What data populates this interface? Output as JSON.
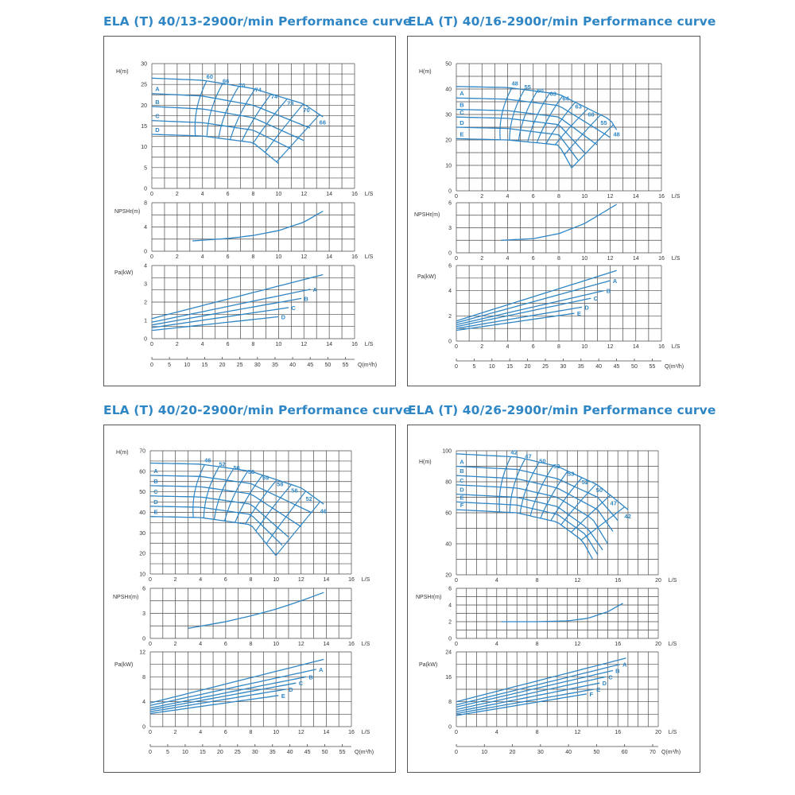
{
  "colors": {
    "curve": "#2f86c5",
    "grid": "#4a4a4a",
    "title": "#2f86c5",
    "text": "#333333"
  },
  "labels": {
    "h": "H(m)",
    "npsh": "NPSHr(m)",
    "pa": "Pa(kW)",
    "ls": "L/S",
    "q": "Q(m³/h)"
  },
  "chart_data": [
    {
      "type": "line",
      "title": "ELA (T) 40/13-2900r/min Performance curve",
      "head": {
        "xlim": [
          0,
          16
        ],
        "ylim": [
          0,
          30
        ],
        "xticks": [
          0,
          2,
          4,
          6,
          8,
          10,
          12,
          14,
          16
        ],
        "yticks": [
          0,
          5,
          10,
          15,
          20,
          25,
          30
        ],
        "series": [
          {
            "x": [
              0,
              4,
              8,
              12,
              13.5
            ],
            "y": [
              26.5,
              26,
              24,
              20.3,
              17.2
            ]
          },
          {
            "name": "A",
            "x": [
              0,
              4,
              8,
              12.5
            ],
            "y": [
              22.8,
              22.2,
              20,
              14.5
            ]
          },
          {
            "name": "B",
            "x": [
              0,
              4,
              8,
              12
            ],
            "y": [
              19.7,
              19.1,
              17,
              11.5
            ]
          },
          {
            "name": "C",
            "x": [
              0,
              4,
              8,
              11
            ],
            "y": [
              16.3,
              15.8,
              14,
              9.5
            ]
          },
          {
            "name": "D",
            "x": [
              0,
              4,
              8,
              10
            ],
            "y": [
              13,
              12.6,
              11,
              6
            ]
          }
        ],
        "efficiency_labels": [
          "60",
          "66",
          "70",
          "74",
          "74",
          "73",
          "70",
          "66"
        ]
      },
      "npsh": {
        "xlim": [
          0,
          16
        ],
        "ylim": [
          0,
          8
        ],
        "yticks": [
          0,
          4,
          8
        ],
        "xticks": [
          0,
          2,
          4,
          6,
          8,
          10,
          12,
          14,
          16
        ],
        "series": [
          {
            "x": [
              3.2,
              6,
              8,
              10,
              12,
              13.5
            ],
            "y": [
              1.7,
              2.1,
              2.6,
              3.4,
              4.8,
              6.6
            ]
          }
        ]
      },
      "power": {
        "xlim": [
          0,
          16
        ],
        "ylim": [
          0,
          4
        ],
        "yticks": [
          0,
          1,
          2,
          3,
          4
        ],
        "xticks": [
          0,
          2,
          4,
          6,
          8,
          10,
          12,
          14,
          16
        ],
        "series": [
          {
            "x": [
              0,
              13.5
            ],
            "y": [
              1.1,
              3.5
            ]
          },
          {
            "name": "A",
            "x": [
              0,
              12.5
            ],
            "y": [
              0.9,
              2.7
            ]
          },
          {
            "name": "B",
            "x": [
              0,
              11.8
            ],
            "y": [
              0.75,
              2.2
            ]
          },
          {
            "name": "C",
            "x": [
              0,
              10.8
            ],
            "y": [
              0.6,
              1.7
            ]
          },
          {
            "name": "D",
            "x": [
              0,
              10
            ],
            "y": [
              0.45,
              1.2
            ]
          }
        ]
      },
      "q_axis": {
        "ticks": [
          0,
          5,
          10,
          15,
          20,
          25,
          30,
          35,
          40,
          45,
          50,
          55
        ],
        "max": 57.6
      }
    },
    {
      "type": "line",
      "title": "ELA (T) 40/16-2900r/min Performance curve",
      "head": {
        "xlim": [
          0,
          16
        ],
        "ylim": [
          0,
          50
        ],
        "xticks": [
          0,
          2,
          4,
          6,
          8,
          10,
          12,
          14,
          16
        ],
        "yticks": [
          0,
          10,
          20,
          30,
          40,
          50
        ],
        "series": [
          {
            "x": [
              0,
              4,
              8,
              12,
              12.5
            ],
            "y": [
              41,
              40.6,
              38,
              28,
              24
            ]
          },
          {
            "name": "A",
            "x": [
              0,
              4,
              8,
              12
            ],
            "y": [
              36.5,
              36,
              33.5,
              21
            ]
          },
          {
            "name": "B",
            "x": [
              0,
              4,
              8,
              11
            ],
            "y": [
              32,
              31.5,
              29,
              18
            ]
          },
          {
            "name": "C",
            "x": [
              0,
              4,
              8,
              10
            ],
            "y": [
              29,
              28.5,
              26,
              15
            ]
          },
          {
            "name": "D",
            "x": [
              0,
              4,
              8,
              9.5
            ],
            "y": [
              25,
              24.5,
              22,
              12
            ]
          },
          {
            "name": "E",
            "x": [
              0,
              4,
              8,
              9
            ],
            "y": [
              20.5,
              20,
              18,
              9
            ]
          }
        ],
        "efficiency_labels": [
          "48",
          "55",
          "60",
          "63",
          "64",
          "63",
          "60",
          "55",
          "48"
        ]
      },
      "npsh": {
        "xlim": [
          0,
          16
        ],
        "ylim": [
          0,
          6
        ],
        "yticks": [
          0,
          3,
          6
        ],
        "xticks": [
          0,
          2,
          4,
          6,
          8,
          10,
          12,
          14,
          16
        ],
        "series": [
          {
            "x": [
              3.5,
              6,
              8,
              10,
              12.5
            ],
            "y": [
              1.5,
              1.7,
              2.3,
              3.5,
              5.8
            ]
          }
        ]
      },
      "power": {
        "xlim": [
          0,
          16
        ],
        "ylim": [
          0,
          6
        ],
        "yticks": [
          0,
          2,
          4,
          6
        ],
        "xticks": [
          0,
          2,
          4,
          6,
          8,
          10,
          12,
          14,
          16
        ],
        "series": [
          {
            "x": [
              0,
              12.5
            ],
            "y": [
              1.6,
              5.6
            ]
          },
          {
            "name": "A",
            "x": [
              0,
              12
            ],
            "y": [
              1.45,
              4.8
            ]
          },
          {
            "name": "B",
            "x": [
              0,
              11.5
            ],
            "y": [
              1.3,
              4
            ]
          },
          {
            "name": "C",
            "x": [
              0,
              10.5
            ],
            "y": [
              1.15,
              3.4
            ]
          },
          {
            "name": "D",
            "x": [
              0,
              9.8
            ],
            "y": [
              1,
              2.7
            ]
          },
          {
            "name": "E",
            "x": [
              0,
              9.2
            ],
            "y": [
              0.85,
              2.2
            ]
          }
        ]
      },
      "q_axis": {
        "ticks": [
          0,
          5,
          10,
          15,
          20,
          25,
          30,
          35,
          40,
          45,
          50,
          55
        ],
        "max": 57.6
      }
    },
    {
      "type": "line",
      "title": "ELA (T) 40/20-2900r/min Performance curve",
      "head": {
        "xlim": [
          0,
          16
        ],
        "ylim": [
          10,
          70
        ],
        "xticks": [
          0,
          2,
          4,
          6,
          8,
          10,
          12,
          14,
          16
        ],
        "yticks": [
          10,
          20,
          30,
          40,
          50,
          60,
          70
        ],
        "series": [
          {
            "x": [
              0,
              4,
              8,
              12,
              13.8
            ],
            "y": [
              64,
              63.5,
              60,
              52,
              44
            ]
          },
          {
            "name": "A",
            "x": [
              0,
              4,
              8,
              12.8
            ],
            "y": [
              58,
              57.5,
              54,
              40
            ]
          },
          {
            "name": "B",
            "x": [
              0,
              4,
              8,
              12
            ],
            "y": [
              53,
              52.5,
              49,
              33
            ]
          },
          {
            "name": "C",
            "x": [
              0,
              4,
              8,
              11
            ],
            "y": [
              48,
              47.5,
              44,
              28
            ]
          },
          {
            "name": "D",
            "x": [
              0,
              4,
              8,
              10.5
            ],
            "y": [
              43,
              42.5,
              39,
              24
            ]
          },
          {
            "name": "E",
            "x": [
              0,
              4,
              8,
              10
            ],
            "y": [
              38,
              37.5,
              34,
              19
            ]
          }
        ],
        "efficiency_labels": [
          "46",
          "52",
          "56",
          "58",
          "59",
          "58",
          "56",
          "52",
          "46"
        ]
      },
      "npsh": {
        "xlim": [
          0,
          16
        ],
        "ylim": [
          0,
          6
        ],
        "yticks": [
          0,
          3,
          6
        ],
        "xticks": [
          0,
          2,
          4,
          6,
          8,
          10,
          12,
          14,
          16
        ],
        "series": [
          {
            "x": [
              3,
              6,
              8,
              10,
              12,
              13.8
            ],
            "y": [
              1.2,
              2,
              2.7,
              3.5,
              4.5,
              5.5
            ]
          }
        ]
      },
      "power": {
        "xlim": [
          0,
          16
        ],
        "ylim": [
          0,
          12
        ],
        "yticks": [
          0,
          4,
          8,
          12
        ],
        "xticks": [
          0,
          2,
          4,
          6,
          8,
          10,
          12,
          14,
          16
        ],
        "series": [
          {
            "x": [
              0,
              13.8
            ],
            "y": [
              3.8,
              10.8
            ]
          },
          {
            "name": "A",
            "x": [
              0,
              13.2
            ],
            "y": [
              3.4,
              9.2
            ]
          },
          {
            "name": "B",
            "x": [
              0,
              12.4
            ],
            "y": [
              3,
              8
            ]
          },
          {
            "name": "C",
            "x": [
              0,
              11.6
            ],
            "y": [
              2.7,
              7
            ]
          },
          {
            "name": "D",
            "x": [
              0,
              10.8
            ],
            "y": [
              2.4,
              6
            ]
          },
          {
            "name": "E",
            "x": [
              0,
              10.2
            ],
            "y": [
              2.1,
              5
            ]
          }
        ]
      },
      "q_axis": {
        "ticks": [
          0,
          5,
          10,
          15,
          20,
          25,
          30,
          35,
          40,
          45,
          50,
          55
        ],
        "max": 57.6
      }
    },
    {
      "type": "line",
      "title": "ELA (T) 40/26-2900r/min Performance curve",
      "head": {
        "xlim": [
          0,
          20
        ],
        "ylim": [
          20,
          100
        ],
        "xticks": [
          0,
          4,
          8,
          12,
          16,
          20
        ],
        "yticks": [
          20,
          40,
          60,
          80,
          100
        ],
        "series": [
          {
            "x": [
              0,
              6,
              10,
              14,
              17
            ],
            "y": [
              98,
              96,
              90,
              78,
              62
            ]
          },
          {
            "name": "A",
            "x": [
              0,
              6,
              10,
              14,
              16
            ],
            "y": [
              90,
              88,
              82,
              70,
              55
            ]
          },
          {
            "name": "B",
            "x": [
              0,
              6,
              10,
              14,
              15.5
            ],
            "y": [
              84,
              82,
              76,
              62,
              48
            ]
          },
          {
            "name": "C",
            "x": [
              0,
              6,
              10,
              13.5,
              15
            ],
            "y": [
              78,
              76,
              70,
              56,
              40
            ]
          },
          {
            "name": "D",
            "x": [
              0,
              6,
              10,
              13,
              14.5
            ],
            "y": [
              72,
              70,
              64,
              50,
              36
            ]
          },
          {
            "name": "E",
            "x": [
              0,
              6,
              10,
              12.8,
              14
            ],
            "y": [
              67,
              65,
              59,
              46,
              33
            ]
          },
          {
            "name": "F",
            "x": [
              0,
              6,
              10,
              12.5,
              13.5
            ],
            "y": [
              62,
              60,
              54,
              42,
              30
            ]
          }
        ],
        "efficiency_labels": [
          "42",
          "47",
          "50",
          "52",
          "53",
          "52",
          "50",
          "47",
          "42"
        ]
      },
      "npsh": {
        "xlim": [
          0,
          20
        ],
        "ylim": [
          0,
          6
        ],
        "yticks": [
          0,
          2,
          4,
          6
        ],
        "xticks": [
          0,
          4,
          8,
          12,
          16,
          20
        ],
        "series": [
          {
            "x": [
              4.5,
              8,
              11,
              13,
              15,
              16.5
            ],
            "y": [
              2,
              2,
              2.1,
              2.4,
              3.2,
              4.2
            ]
          }
        ]
      },
      "power": {
        "xlim": [
          0,
          20
        ],
        "ylim": [
          0,
          24
        ],
        "yticks": [
          0,
          8,
          16,
          24
        ],
        "xticks": [
          0,
          4,
          8,
          12,
          16,
          20
        ],
        "series": [
          {
            "x": [
              0,
              16.8
            ],
            "y": [
              8,
              22
            ]
          },
          {
            "name": "A",
            "x": [
              0,
              16.2
            ],
            "y": [
              7,
              20
            ]
          },
          {
            "name": "B",
            "x": [
              0,
              15.5
            ],
            "y": [
              6.3,
              18
            ]
          },
          {
            "name": "C",
            "x": [
              0,
              14.8
            ],
            "y": [
              5.5,
              16
            ]
          },
          {
            "name": "D",
            "x": [
              0,
              14.2
            ],
            "y": [
              4.8,
              14
            ]
          },
          {
            "name": "E",
            "x": [
              0,
              13.6
            ],
            "y": [
              4.2,
              12
            ]
          },
          {
            "name": "F",
            "x": [
              0,
              12.9
            ],
            "y": [
              3.6,
              10.5
            ]
          }
        ]
      },
      "q_axis": {
        "ticks": [
          0,
          10,
          20,
          30,
          40,
          50,
          60,
          70
        ],
        "max": 72
      }
    }
  ]
}
